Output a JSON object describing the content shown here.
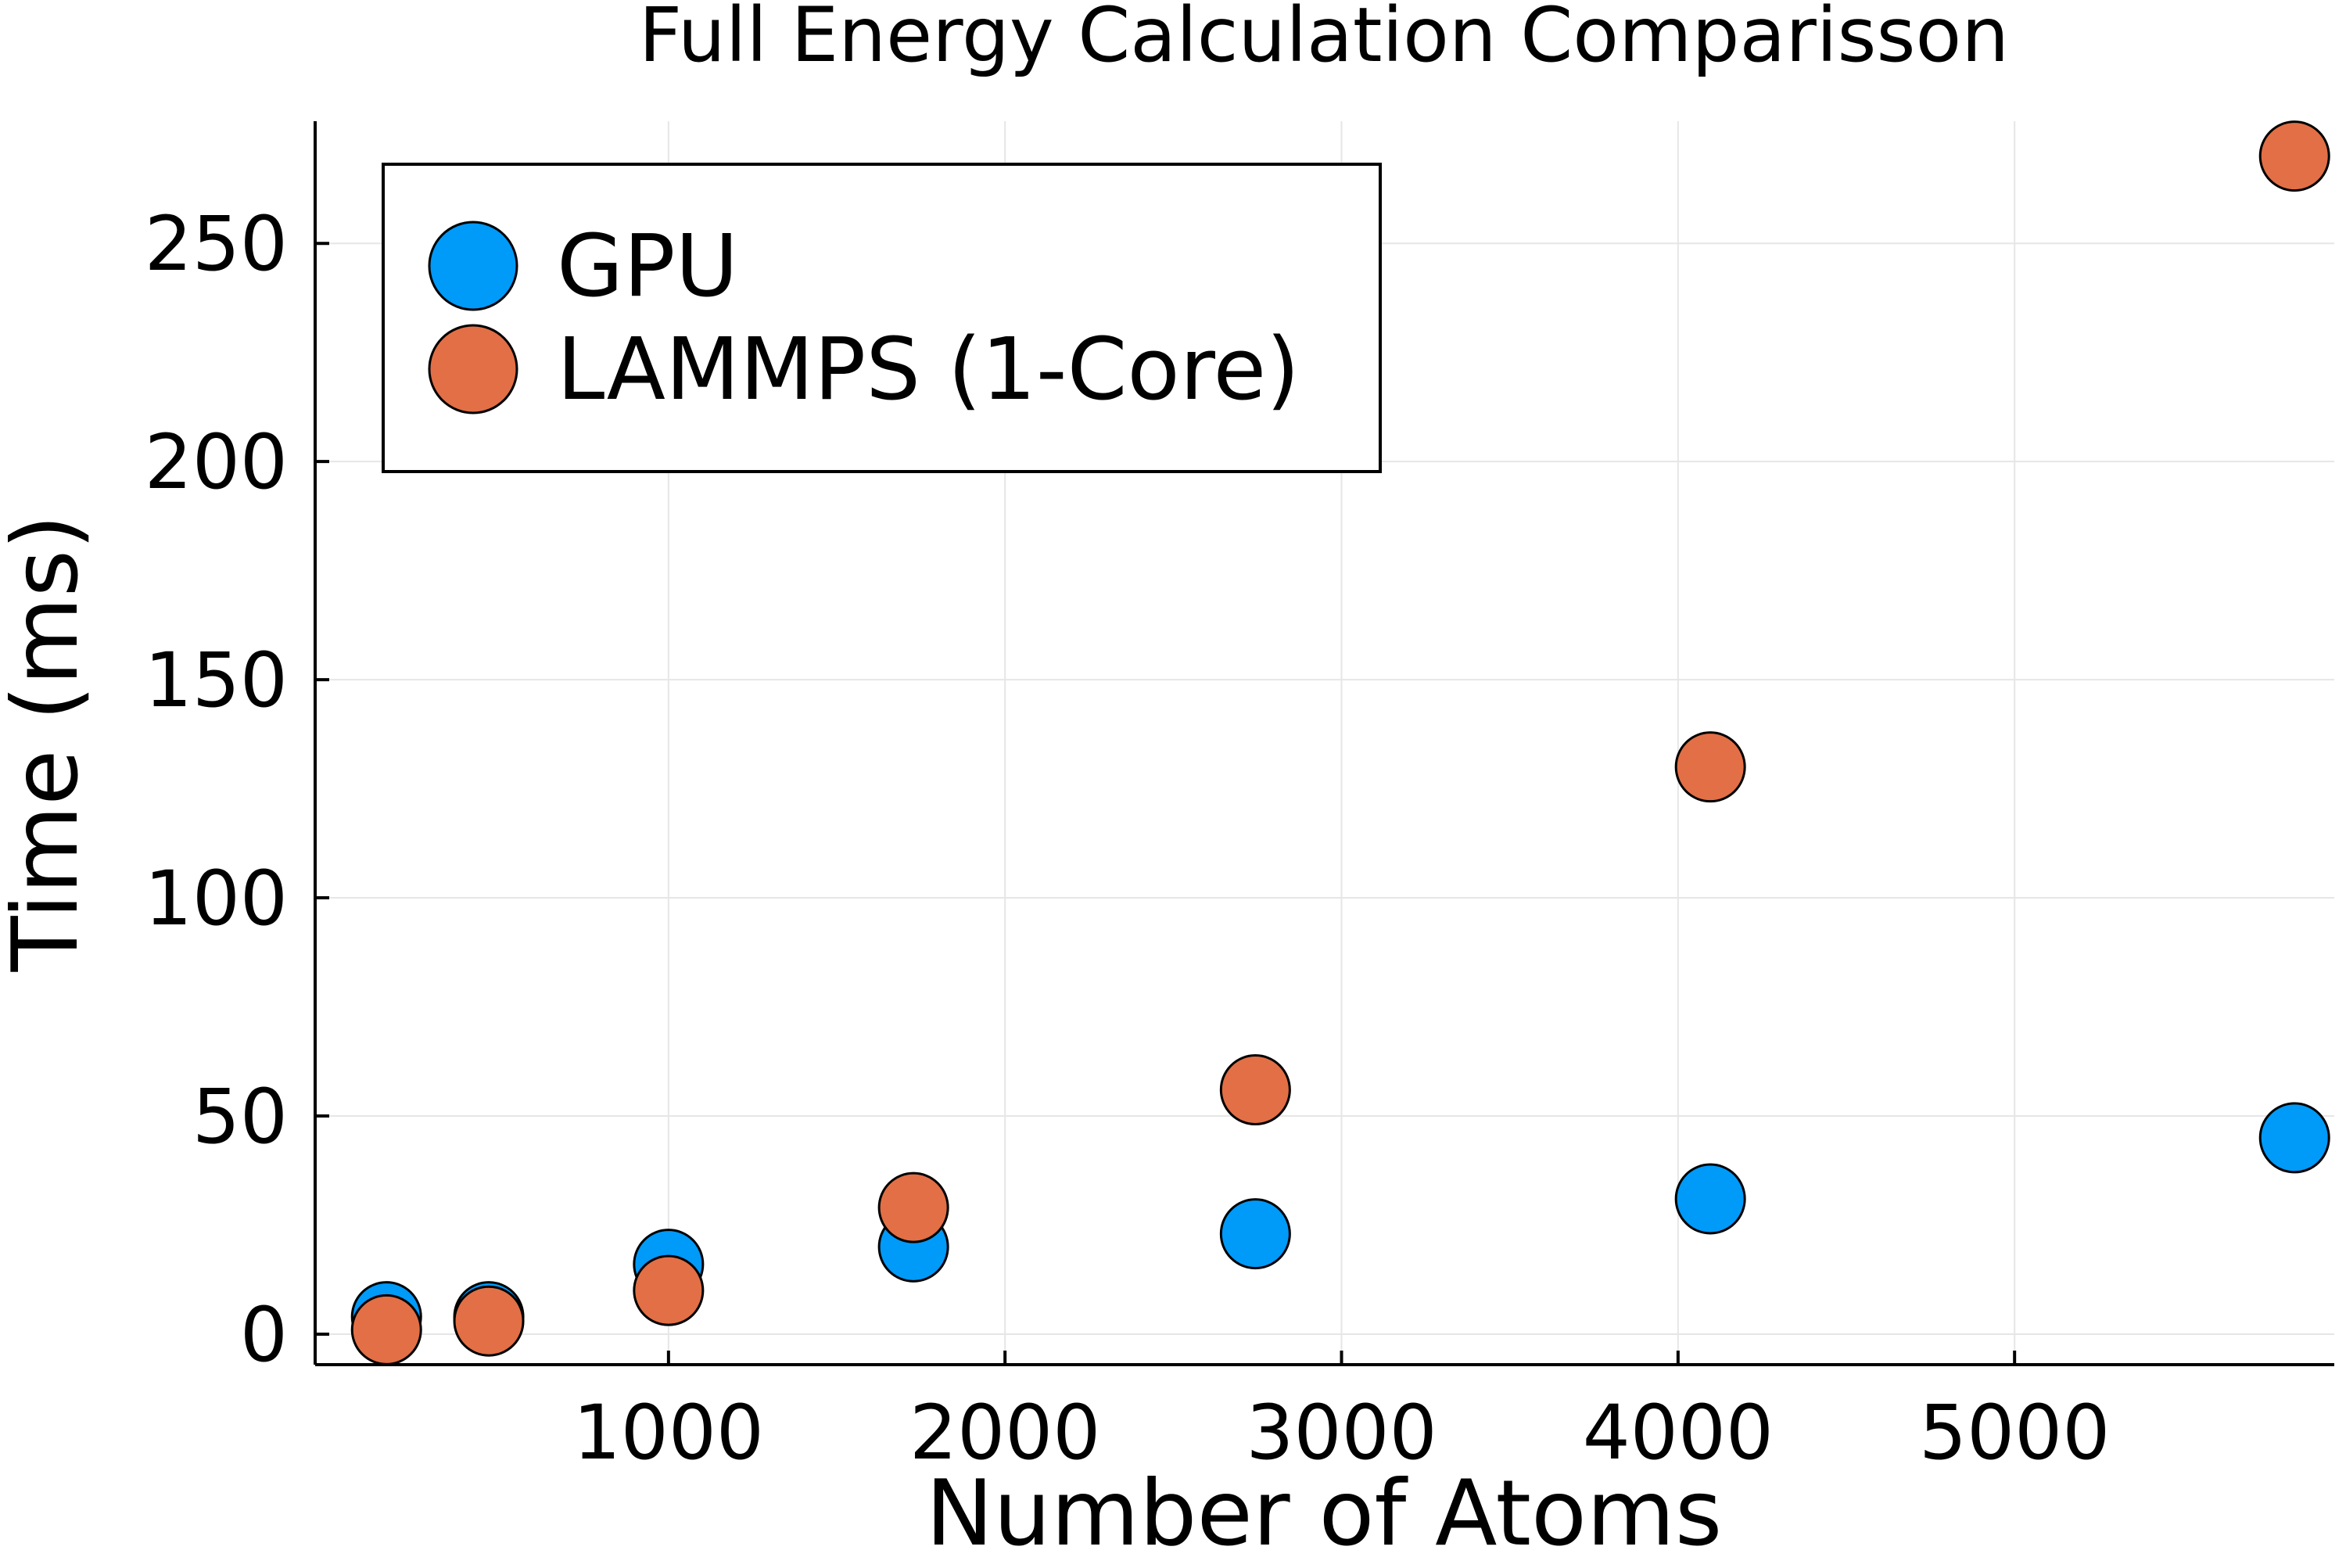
{
  "chart_data": {
    "type": "scatter",
    "title": "Full Energy Calculation Comparisson",
    "xlabel": "Number of Atoms",
    "ylabel": "Time (ms)",
    "xlim": [
      -50,
      5950
    ],
    "ylim": [
      -7,
      278
    ],
    "xticks": [
      1000,
      2000,
      3000,
      4000,
      5000
    ],
    "yticks": [
      0,
      50,
      100,
      150,
      200,
      250
    ],
    "grid": true,
    "legend_position": "top-left",
    "series": [
      {
        "name": "GPU",
        "color": "#009af9",
        "x": [
          162,
          466,
          1000,
          1728,
          2744,
          4096,
          5832
        ],
        "y": [
          4,
          4,
          16,
          20,
          23,
          31,
          45
        ]
      },
      {
        "name": "LAMMPS (1-Core)",
        "color": "#e26f46",
        "x": [
          162,
          466,
          1000,
          1728,
          2744,
          4096,
          5832
        ],
        "y": [
          1,
          3,
          10,
          29,
          56,
          130,
          270
        ]
      }
    ]
  }
}
